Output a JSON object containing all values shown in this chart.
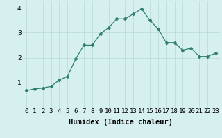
{
  "x": [
    0,
    1,
    2,
    3,
    4,
    5,
    6,
    7,
    8,
    9,
    10,
    11,
    12,
    13,
    14,
    15,
    16,
    17,
    18,
    19,
    20,
    21,
    22,
    23
  ],
  "y": [
    0.68,
    0.75,
    0.78,
    0.85,
    1.1,
    1.25,
    1.95,
    2.5,
    2.5,
    2.95,
    3.2,
    3.55,
    3.55,
    3.75,
    3.95,
    3.5,
    3.15,
    2.6,
    2.6,
    2.3,
    2.38,
    2.05,
    2.05,
    2.18
  ],
  "line_color": "#2e7d6e",
  "marker": "D",
  "marker_size": 2.5,
  "background_color": "#d6f0ef",
  "grid_color": "#b8d8d5",
  "xlabel": "Humidex (Indice chaleur)",
  "xlim": [
    -0.5,
    23.5
  ],
  "ylim": [
    0,
    4.25
  ],
  "yticks": [
    1,
    2,
    3,
    4
  ],
  "xtick_labels": [
    "0",
    "1",
    "2",
    "3",
    "4",
    "5",
    "6",
    "7",
    "8",
    "9",
    "10",
    "11",
    "12",
    "13",
    "14",
    "15",
    "16",
    "17",
    "18",
    "19",
    "20",
    "21",
    "22",
    "23"
  ],
  "xlabel_fontsize": 7.5,
  "tick_fontsize": 6.5
}
